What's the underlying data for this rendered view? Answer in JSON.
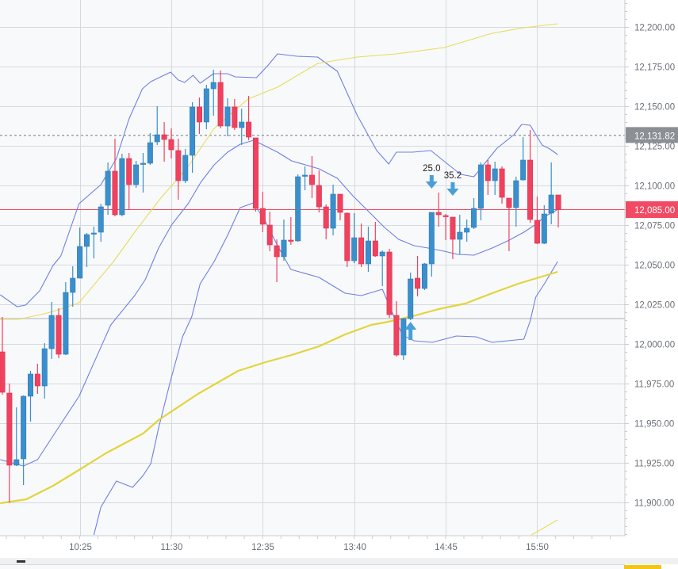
{
  "chart_data": {
    "type": "candlestick",
    "title": "",
    "xlabel": "",
    "ylabel": "",
    "interval_minutes": 5,
    "first_candle_time": "09:30",
    "ylim": [
      11878,
      12217
    ],
    "grid": true,
    "y_ticks": [
      12200,
      12175,
      12150,
      12125,
      12100,
      12075,
      12050,
      12025,
      12000,
      11975,
      11950,
      11925,
      11900
    ],
    "y_tick_labels": [
      "12,200.00",
      "12,175.00",
      "12,150.00",
      "12,125.00",
      "12,100.00",
      "12,075.00",
      "12,050.00",
      "12,025.00",
      "12,000.00",
      "11,975.00",
      "11,950.00",
      "11,925.00",
      "11,900.00"
    ],
    "x_ticks": [
      {
        "index": 11,
        "label": "10:25"
      },
      {
        "index": 24,
        "label": "11:30"
      },
      {
        "index": 37,
        "label": "12:35"
      },
      {
        "index": 50,
        "label": "13:40"
      },
      {
        "index": 63,
        "label": "14:45"
      },
      {
        "index": 76,
        "label": "15:50"
      }
    ],
    "candles_ohlc": [
      [
        11995,
        12017,
        11968,
        11969.5
      ],
      [
        11969,
        11975,
        11900,
        11923.5
      ],
      [
        11923.5,
        11960,
        11923,
        11927
      ],
      [
        11927.5,
        11967.5,
        11911,
        11967
      ],
      [
        11967,
        11983,
        11951,
        11981
      ],
      [
        11981,
        11987.5,
        11968.5,
        11973.5
      ],
      [
        11973.5,
        12000.5,
        11965.5,
        11997
      ],
      [
        11997,
        12026.5,
        11990.5,
        12018
      ],
      [
        12018,
        12022.5,
        11991,
        11993.5
      ],
      [
        11993.5,
        12039,
        11993,
        12032.5
      ],
      [
        12032.5,
        12049,
        12023.5,
        12041.5
      ],
      [
        12041.5,
        12073.5,
        12041.5,
        12061.5
      ],
      [
        12061.5,
        12070,
        12048.5,
        12069
      ],
      [
        12069.5,
        12074,
        12054,
        12070
      ],
      [
        12070.5,
        12088.5,
        12064.5,
        12086.5
      ],
      [
        12087.5,
        12114.5,
        12081.5,
        12109
      ],
      [
        12109,
        12129.5,
        12080.5,
        12081.5
      ],
      [
        12081.5,
        12120,
        12080.5,
        12117
      ],
      [
        12117,
        12120.5,
        12084.5,
        12100.5
      ],
      [
        12100.5,
        12115.5,
        12098.5,
        12113
      ],
      [
        12113.5,
        12120.5,
        12095.5,
        12114
      ],
      [
        12114,
        12133,
        12113,
        12127
      ],
      [
        12127.5,
        12150,
        12125.5,
        12132
      ],
      [
        12132,
        12140,
        12115,
        12129
      ],
      [
        12129,
        12136,
        12117,
        12122.5
      ],
      [
        12122,
        12129.5,
        12091,
        12103
      ],
      [
        12103,
        12123,
        12101.5,
        12119
      ],
      [
        12119,
        12152.5,
        12108,
        12149.5
      ],
      [
        12149.5,
        12155.5,
        12132.5,
        12140
      ],
      [
        12140,
        12163.5,
        12135.5,
        12161
      ],
      [
        12161,
        12173,
        12144,
        12165
      ],
      [
        12165,
        12172.5,
        12136,
        12137.5
      ],
      [
        12137.5,
        12155,
        12131,
        12149.5
      ],
      [
        12149.5,
        12154.5,
        12135,
        12136.5
      ],
      [
        12136.5,
        12148.5,
        12125.5,
        12140
      ],
      [
        12140,
        12156.5,
        12128.5,
        12130.5
      ],
      [
        12130,
        12130,
        12083.5,
        12085.5
      ],
      [
        12085.5,
        12096,
        12070.5,
        12075.5
      ],
      [
        12075,
        12083.5,
        12058.5,
        12062.5
      ],
      [
        12062,
        12066,
        12039,
        12055
      ],
      [
        12055,
        12078.5,
        12052.5,
        12065.5
      ],
      [
        12065.5,
        12080,
        12062.5,
        12065
      ],
      [
        12065,
        12107,
        12064.5,
        12105.5
      ],
      [
        12106,
        12112,
        12097,
        12106.5
      ],
      [
        12106.5,
        12118.5,
        12092,
        12100.5
      ],
      [
        12100,
        12109.5,
        12083,
        12086.5
      ],
      [
        12086.5,
        12088,
        12066,
        12073
      ],
      [
        12073,
        12100.5,
        12068.5,
        12094.5
      ],
      [
        12094.5,
        12094.5,
        12078,
        12083
      ],
      [
        12082.5,
        12083,
        12048.5,
        12052.5
      ],
      [
        12052.5,
        12082.5,
        12051,
        12067
      ],
      [
        12067,
        12076,
        12048.5,
        12050.5
      ],
      [
        12050.5,
        12074,
        12045.5,
        12065
      ],
      [
        12065,
        12077,
        12055,
        12055.5
      ],
      [
        12055.5,
        12059,
        12036.5,
        12058
      ],
      [
        12058,
        12060,
        12016.5,
        12018.5
      ],
      [
        12018,
        12027,
        11992,
        11993
      ],
      [
        11993,
        12016.5,
        11990,
        12016
      ],
      [
        12016,
        12045,
        12015,
        12041
      ],
      [
        12041.5,
        12055.5,
        12030,
        12035
      ],
      [
        12035,
        12051,
        12034,
        12050.5
      ],
      [
        12050.5,
        12083,
        12042.5,
        12083
      ],
      [
        12083,
        12095.5,
        12074,
        12081.5
      ],
      [
        12081,
        12082,
        12065.5,
        12080.5
      ],
      [
        12080,
        12080,
        12053.5,
        12066
      ],
      [
        12066,
        12081.5,
        12056.5,
        12070.5
      ],
      [
        12070.5,
        12078.5,
        12064.5,
        12073
      ],
      [
        12073.5,
        12092,
        12072.5,
        12085.5
      ],
      [
        12085.5,
        12114.5,
        12078,
        12113
      ],
      [
        12113,
        12116,
        12094,
        12103
      ],
      [
        12103,
        12115,
        12094,
        12110.5
      ],
      [
        12110.5,
        12112,
        12088.5,
        12092.5
      ],
      [
        12092,
        12092,
        12058.5,
        12086
      ],
      [
        12086,
        12105.5,
        12074,
        12103
      ],
      [
        12103.5,
        12130.5,
        12103,
        12116
      ],
      [
        12116,
        12135,
        12076.5,
        12078.5
      ],
      [
        12078,
        12093,
        12063,
        12063.5
      ],
      [
        12063.5,
        12087.5,
        12063,
        12082
      ],
      [
        12082.5,
        12114.5,
        12075.5,
        12094
      ],
      [
        12094,
        12094,
        12073.5,
        12085
      ]
    ],
    "overlays": {
      "upper_band": [
        [
          -0.3,
          12031
        ],
        [
          2.1,
          12023.5
        ],
        [
          3.3,
          12024.5
        ],
        [
          5.3,
          12033.5
        ],
        [
          7.2,
          12049.5
        ],
        [
          8.3,
          12055.5
        ],
        [
          10.9,
          12088.5
        ],
        [
          14,
          12100.5
        ],
        [
          16.2,
          12117
        ],
        [
          18,
          12142
        ],
        [
          19.9,
          12161
        ],
        [
          21.1,
          12165.5
        ],
        [
          23.9,
          12171.5
        ],
        [
          25,
          12166.5
        ],
        [
          25.9,
          12165
        ],
        [
          27.1,
          12169.5
        ],
        [
          28.1,
          12164.5
        ],
        [
          30,
          12170.5
        ],
        [
          32,
          12170.5
        ],
        [
          33.1,
          12168.5
        ],
        [
          36.1,
          12168
        ],
        [
          37.7,
          12175.5
        ],
        [
          39.1,
          12183
        ],
        [
          41.9,
          12181.5
        ],
        [
          44.8,
          12181
        ],
        [
          47.6,
          12172
        ],
        [
          50.4,
          12144.5
        ],
        [
          53.2,
          12122
        ],
        [
          54.9,
          12113.5
        ],
        [
          56,
          12121
        ],
        [
          58.3,
          12121
        ],
        [
          60.9,
          12122
        ],
        [
          65.1,
          12107
        ],
        [
          67,
          12105.5
        ],
        [
          70.3,
          12123.5
        ],
        [
          72.7,
          12132
        ],
        [
          73.8,
          12138.5
        ],
        [
          75,
          12138
        ],
        [
          76.7,
          12125.5
        ],
        [
          77.8,
          12123
        ],
        [
          78.9,
          12119.5
        ]
      ],
      "middle_band": [
        [
          -0.3,
          11927
        ],
        [
          3,
          11923
        ],
        [
          5,
          11927
        ],
        [
          7.2,
          11942
        ],
        [
          10.9,
          11967
        ],
        [
          15.4,
          12012
        ],
        [
          18.8,
          12030.5
        ],
        [
          20.3,
          12040.5
        ],
        [
          22.2,
          12060.5
        ],
        [
          24.1,
          12075.5
        ],
        [
          26.4,
          12088.5
        ],
        [
          28.2,
          12102
        ],
        [
          30.1,
          12113
        ],
        [
          32,
          12121
        ],
        [
          33.8,
          12126
        ],
        [
          35.7,
          12128.5
        ],
        [
          39.1,
          12121
        ],
        [
          41.1,
          12115.5
        ],
        [
          45,
          12110.5
        ],
        [
          47.6,
          12104.5
        ],
        [
          49.8,
          12093.5
        ],
        [
          52.4,
          12082
        ],
        [
          54.3,
          12073.5
        ],
        [
          56.3,
          12066
        ],
        [
          58.5,
          12062
        ],
        [
          60.5,
          12060.5
        ],
        [
          62.8,
          12058.5
        ],
        [
          64.7,
          12056.5
        ],
        [
          67,
          12056
        ],
        [
          69.6,
          12060.5
        ],
        [
          71.8,
          12065
        ],
        [
          74.1,
          12070.5
        ],
        [
          76,
          12076
        ],
        [
          77.1,
          12080.5
        ],
        [
          78.8,
          12084.5
        ]
      ],
      "lower_band": [
        [
          13,
          11879.5
        ],
        [
          14,
          11897
        ],
        [
          16.2,
          11913.5
        ],
        [
          18.5,
          11909.5
        ],
        [
          20,
          11917
        ],
        [
          21.1,
          11924.5
        ],
        [
          22.2,
          11947
        ],
        [
          23.9,
          11977
        ],
        [
          25.6,
          12004.5
        ],
        [
          26.9,
          12017
        ],
        [
          28.1,
          12038
        ],
        [
          30.1,
          12052
        ],
        [
          32,
          12068.5
        ],
        [
          33.8,
          12086
        ],
        [
          35.7,
          12089
        ],
        [
          37.4,
          12077
        ],
        [
          39.1,
          12062
        ],
        [
          41,
          12047
        ],
        [
          45,
          12042
        ],
        [
          48.7,
          12032
        ],
        [
          51,
          12030.5
        ],
        [
          54,
          12034.5
        ],
        [
          55.8,
          12015.5
        ],
        [
          56.9,
          12005.5
        ],
        [
          58.5,
          12002
        ],
        [
          61.1,
          12001
        ],
        [
          64.5,
          12005
        ],
        [
          67.3,
          12004.5
        ],
        [
          69.6,
          12001
        ],
        [
          71.8,
          12002
        ],
        [
          74.1,
          12003
        ],
        [
          75,
          12014.5
        ],
        [
          75.8,
          12029.5
        ],
        [
          77.1,
          12038.5
        ],
        [
          78.9,
          12052
        ]
      ],
      "ma_thin": [
        [
          -0.3,
          12015.5
        ],
        [
          2.3,
          12015.5
        ],
        [
          6.4,
          12019.5
        ],
        [
          9,
          12023
        ],
        [
          10.9,
          12026
        ],
        [
          15.8,
          12052
        ],
        [
          18.8,
          12070.5
        ],
        [
          22.5,
          12092
        ],
        [
          26.4,
          12112
        ],
        [
          30.1,
          12136
        ],
        [
          34.9,
          12154.5
        ],
        [
          39.1,
          12162
        ],
        [
          44.8,
          12177
        ],
        [
          50.4,
          12181
        ],
        [
          56,
          12183
        ],
        [
          62.8,
          12187
        ],
        [
          69.6,
          12196
        ],
        [
          74.1,
          12199.5
        ],
        [
          78.9,
          12202
        ]
      ],
      "ma_thick": [
        [
          -0.3,
          11899.5
        ],
        [
          3.4,
          11902
        ],
        [
          7.2,
          11910.5
        ],
        [
          10.9,
          11920.5
        ],
        [
          14.7,
          11931
        ],
        [
          20,
          11943.5
        ],
        [
          22.2,
          11952
        ],
        [
          27.8,
          11968.5
        ],
        [
          33.5,
          11983
        ],
        [
          37.4,
          11988.5
        ],
        [
          41.1,
          11993
        ],
        [
          45,
          11998.5
        ],
        [
          48.7,
          12006
        ],
        [
          52.4,
          12012
        ],
        [
          54.3,
          12013.5
        ],
        [
          58.3,
          12017.5
        ],
        [
          62,
          12022
        ],
        [
          65.8,
          12025.5
        ],
        [
          69.6,
          12032
        ],
        [
          73.3,
          12038
        ],
        [
          78.9,
          12045.5
        ]
      ],
      "ma_lower_thin": [
        [
          75.2,
          11879.5
        ],
        [
          78.9,
          11889
        ]
      ]
    },
    "reference_lines": {
      "last_price": 12085.0,
      "last_price_label": "12,085.00",
      "dashed_level": 12131.82,
      "dashed_level_label": "12,131.82",
      "gray_level": 12016
    },
    "signals": [
      {
        "index": 61,
        "direction": "down",
        "price": 12098,
        "label": "25.0"
      },
      {
        "index": 64,
        "direction": "down",
        "price": 12093.5,
        "label": "35.2"
      },
      {
        "index": 58,
        "direction": "up",
        "price": 12014,
        "label": ""
      }
    ],
    "colors": {
      "up": "#3a8fcc",
      "down": "#f0415f",
      "band": "#6f7fe0",
      "ma": "#e8dc5a",
      "last_price": "#f24a64",
      "dashed_label": "#8c8f94",
      "arrow": "#4a9fd8",
      "grid": "#d6d9de",
      "plot_bg": "#f8f9fb"
    }
  }
}
